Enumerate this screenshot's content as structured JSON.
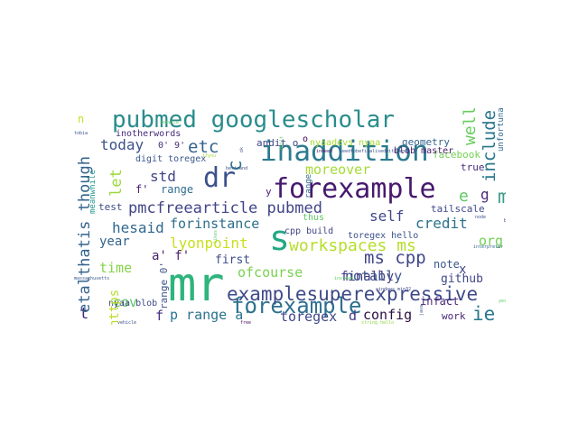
{
  "words": [
    {
      "id": "pubmed-googlescholar",
      "text": "pubmed googlescholar",
      "color": "#2a8c8c"
    },
    {
      "id": "inaddition",
      "text": "inaddition",
      "color": "#2b7b8e"
    },
    {
      "id": "forexample-1",
      "text": "forexample",
      "color": "#46196e"
    },
    {
      "id": "forexample-2",
      "text": "forexample",
      "color": "#2d718e"
    },
    {
      "id": "mr",
      "text": "mr",
      "color": "#2fb47c"
    },
    {
      "id": "dr",
      "text": "dr",
      "color": "#3b528b"
    },
    {
      "id": "s",
      "text": "s",
      "color": "#22a884"
    },
    {
      "id": "examplesuperexpressive",
      "text": "examplesuperexpressive",
      "color": "#3e4a89"
    },
    {
      "id": "workspaces-ms",
      "text": "workspaces ms",
      "color": "#b5de2b"
    },
    {
      "id": "pmcfreearticle-pubmed",
      "text": "pmcfreearticle pubmed",
      "color": "#414487"
    },
    {
      "id": "ms-cpp",
      "text": "ms cpp",
      "color": "#404688"
    },
    {
      "id": "ie",
      "text": "ie",
      "color": "#2a788e"
    },
    {
      "id": "m",
      "text": "m",
      "color": "#3b9a84"
    },
    {
      "id": "e",
      "text": "e",
      "color": "#5ec962"
    },
    {
      "id": "g",
      "text": "g",
      "color": "#482878"
    },
    {
      "id": "etc",
      "text": "etc",
      "color": "#33638d"
    },
    {
      "id": "today",
      "text": "today",
      "color": "#3b528b"
    },
    {
      "id": "let",
      "text": "let",
      "color": "#9bd93c"
    },
    {
      "id": "std",
      "text": "std",
      "color": "#414487"
    },
    {
      "id": "hesaid",
      "text": "hesaid",
      "color": "#31688e"
    },
    {
      "id": "forinstance",
      "text": "forinstance",
      "color": "#2e6e8e"
    },
    {
      "id": "lyonpoint",
      "text": "lyonpoint",
      "color": "#c8e020"
    },
    {
      "id": "self",
      "text": "self",
      "color": "#3f4889"
    },
    {
      "id": "credit",
      "text": "credit",
      "color": "#2c728e"
    },
    {
      "id": "finally",
      "text": "finally",
      "color": "#443a83"
    },
    {
      "id": "moreover",
      "text": "moreover",
      "color": "#a5db36"
    },
    {
      "id": "org",
      "text": "org",
      "color": "#73d055"
    },
    {
      "id": "year",
      "text": "year",
      "color": "#33638d"
    },
    {
      "id": "time",
      "text": "time",
      "color": "#84d44b"
    },
    {
      "id": "a-f",
      "text": "a' f'",
      "color": "#481f70"
    },
    {
      "id": "first",
      "text": "first",
      "color": "#3e4c8a"
    },
    {
      "id": "ofcourse",
      "text": "ofcourse",
      "color": "#7ad151"
    },
    {
      "id": "notably",
      "text": "notably",
      "color": "#3b528b"
    },
    {
      "id": "cov",
      "text": "cov",
      "color": "#5ec962"
    },
    {
      "id": "f",
      "text": "f",
      "color": "#46307e"
    },
    {
      "id": "p-range-a",
      "text": "p range a'",
      "color": "#2c728e"
    },
    {
      "id": "toregex",
      "text": "toregex",
      "color": "#3f4889"
    },
    {
      "id": "d",
      "text": "d",
      "color": "#443983"
    },
    {
      "id": "config",
      "text": "config",
      "color": "#2d0f41"
    },
    {
      "id": "t",
      "text": "t",
      "color": "#482878"
    },
    {
      "id": "github",
      "text": "github",
      "color": "#404688"
    },
    {
      "id": "note",
      "text": "note",
      "color": "#39568c"
    },
    {
      "id": "infact",
      "text": "infact",
      "color": "#482475"
    },
    {
      "id": "x",
      "text": "x",
      "color": "#3e4989"
    },
    {
      "id": "work",
      "text": "work",
      "color": "#482576"
    },
    {
      "id": "point",
      "text": "point",
      "color": "#5ec962"
    },
    {
      "id": "tailscale",
      "text": "tailscale",
      "color": "#3e4a89"
    },
    {
      "id": "true",
      "text": "true",
      "color": "#482878"
    },
    {
      "id": "facebook",
      "text": "facebook",
      "color": "#75d054"
    },
    {
      "id": "geometry",
      "text": "geometry",
      "color": "#33638d"
    },
    {
      "id": "blob-master",
      "text": "blob master",
      "color": "#481a6c"
    },
    {
      "id": "nyaadevs-nyaa",
      "text": "nyaadevs nyaa",
      "color": "#a8db34"
    },
    {
      "id": "andit",
      "text": "andit o",
      "color": "#414487"
    },
    {
      "id": "inotherwords",
      "text": "inotherwords",
      "color": "#472a7a"
    },
    {
      "id": "digit-toregex",
      "text": "digit toregex",
      "color": "#39568c"
    },
    {
      "id": "0-9",
      "text": "0' 9'",
      "color": "#472d7b"
    },
    {
      "id": "range-1",
      "text": "range",
      "color": "#2f6c8e"
    },
    {
      "id": "f-prime",
      "text": "f'",
      "color": "#481d6f"
    },
    {
      "id": "test",
      "text": "test",
      "color": "#3e4a89"
    },
    {
      "id": "thus",
      "text": "thus",
      "color": "#5ec962"
    },
    {
      "id": "cpp-build",
      "text": "cpp build",
      "color": "#404588"
    },
    {
      "id": "toregex-hello",
      "text": "toregex hello",
      "color": "#3b528b"
    },
    {
      "id": "nyaa-blob",
      "text": "nyaa blob",
      "color": "#3f4788"
    },
    {
      "id": "n",
      "text": "n",
      "color": "#c2df23"
    },
    {
      "id": "y",
      "text": "y",
      "color": "#482173"
    },
    {
      "id": "o-small",
      "text": "o",
      "color": "#440154"
    },
    {
      "id": "tobia",
      "text": "tobia",
      "color": "#3b528b"
    },
    {
      "id": "service",
      "text": "service",
      "color": "#5ec962"
    },
    {
      "id": "ifyou",
      "text": "ifyou",
      "color": "#a0da39"
    },
    {
      "id": "bertrand",
      "text": "bertrand",
      "color": "#3e4a89"
    },
    {
      "id": "indeed",
      "text": "indeed",
      "color": "#481769"
    },
    {
      "id": "needtobefinalisedwith-end",
      "text": "needtobefinalisedwith end",
      "color": "#3b528b"
    },
    {
      "id": "massachusetts",
      "text": "massachusetts",
      "color": "#39568c"
    },
    {
      "id": "instead",
      "text": "instead",
      "color": "#5ec962"
    },
    {
      "id": "windows-min32",
      "text": "windows min32",
      "color": "#3e4a89"
    },
    {
      "id": "interpreter",
      "text": "interpreter",
      "color": "#31688e"
    },
    {
      "id": "node",
      "text": "node",
      "color": "#3b528b"
    },
    {
      "id": "b",
      "text": "b",
      "color": "#481d6f"
    },
    {
      "id": "yes",
      "text": "yes",
      "color": "#5ec962"
    },
    {
      "id": "free",
      "text": "free",
      "color": "#46085c"
    },
    {
      "id": "vehicle",
      "text": "vehicle",
      "color": "#3b528b"
    },
    {
      "id": "string-hello",
      "text": "string hello",
      "color": "#8fd744"
    },
    {
      "id": "java",
      "text": "java",
      "color": "#39568c"
    },
    {
      "id": "c",
      "text": "c",
      "color": "#2d718e"
    },
    {
      "id": "well",
      "text": "well",
      "color": "#67cc5c"
    },
    {
      "id": "unfortunately",
      "text": "unfortunately",
      "color": "#31688e"
    },
    {
      "id": "include",
      "text": "include",
      "color": "#2a788e"
    },
    {
      "id": "etalthatis-though",
      "text": "etalthatis though",
      "color": "#33638d"
    },
    {
      "id": "meanwhile",
      "text": "meanwhile",
      "color": "#1f968b"
    },
    {
      "id": "https",
      "text": "https",
      "color": "#b8de29"
    },
    {
      "id": "range-2",
      "text": "range",
      "color": "#31688e"
    },
    {
      "id": "range-0",
      "text": "range 0'",
      "color": "#3b528b"
    },
    {
      "id": "built",
      "text": "built",
      "color": "#5ec962"
    },
    {
      "id": "ok",
      "text": "ok",
      "color": "#3e4a89"
    },
    {
      "id": "likes",
      "text": "likes",
      "color": "#5ec962"
    }
  ]
}
